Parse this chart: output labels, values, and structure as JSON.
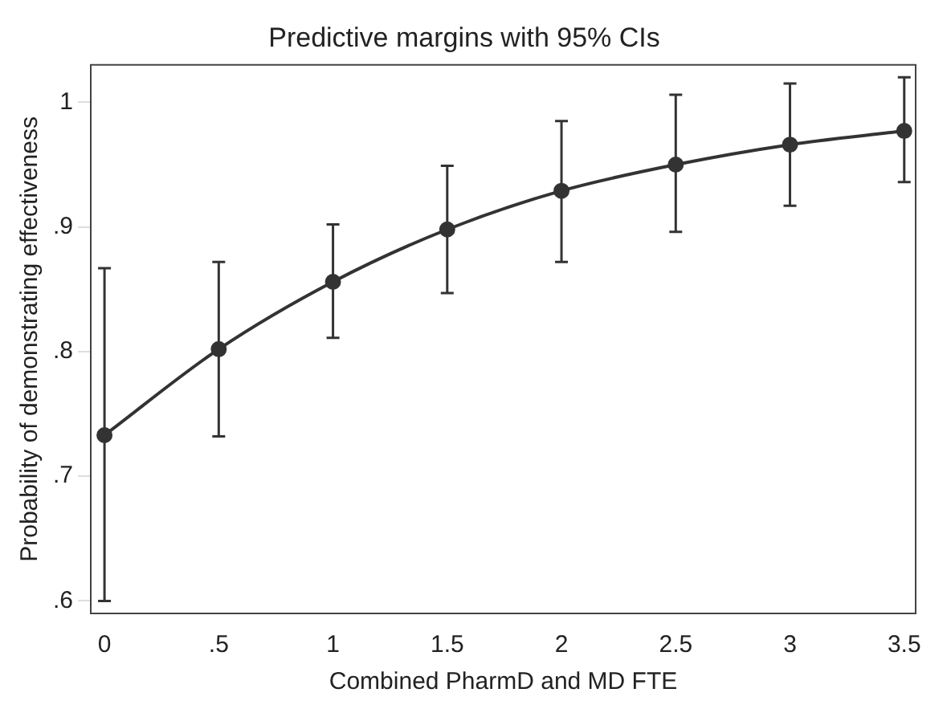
{
  "chart_data": {
    "type": "line",
    "title": "Predictive margins with 95% CIs",
    "xlabel": "Combined PharmD and MD FTE",
    "ylabel": "Probability of demonstrating effectiveness",
    "x": [
      0,
      0.5,
      1,
      1.5,
      2,
      2.5,
      3,
      3.5
    ],
    "series": [
      {
        "color": "#333333",
        "values": [
          0.733,
          0.802,
          0.856,
          0.898,
          0.929,
          0.95,
          0.966,
          0.977
        ],
        "errors": [
          [
            0.6,
            0.867
          ],
          [
            0.732,
            0.872
          ],
          [
            0.811,
            0.902
          ],
          [
            0.847,
            0.949
          ],
          [
            0.872,
            0.985
          ],
          [
            0.896,
            1.006
          ],
          [
            0.917,
            1.015
          ],
          [
            0.936,
            1.02
          ]
        ]
      }
    ],
    "xlim": [
      -0.06,
      3.55
    ],
    "ylim": [
      0.59,
      1.03
    ],
    "xticks": [
      {
        "value": 0,
        "label": "0"
      },
      {
        "value": 0.5,
        "label": ".5"
      },
      {
        "value": 1,
        "label": "1"
      },
      {
        "value": 1.5,
        "label": "1.5"
      },
      {
        "value": 2,
        "label": "2"
      },
      {
        "value": 2.5,
        "label": "2.5"
      },
      {
        "value": 3,
        "label": "3"
      },
      {
        "value": 3.5,
        "label": "3.5"
      }
    ],
    "yticks": [
      {
        "value": 0.6,
        "label": ".6"
      },
      {
        "value": 0.7,
        "label": ".7"
      },
      {
        "value": 0.8,
        "label": ".8"
      },
      {
        "value": 0.9,
        "label": ".9"
      },
      {
        "value": 1,
        "label": "1"
      }
    ],
    "grid": false,
    "legend": false,
    "marker": "circle",
    "line_style": "solid"
  }
}
